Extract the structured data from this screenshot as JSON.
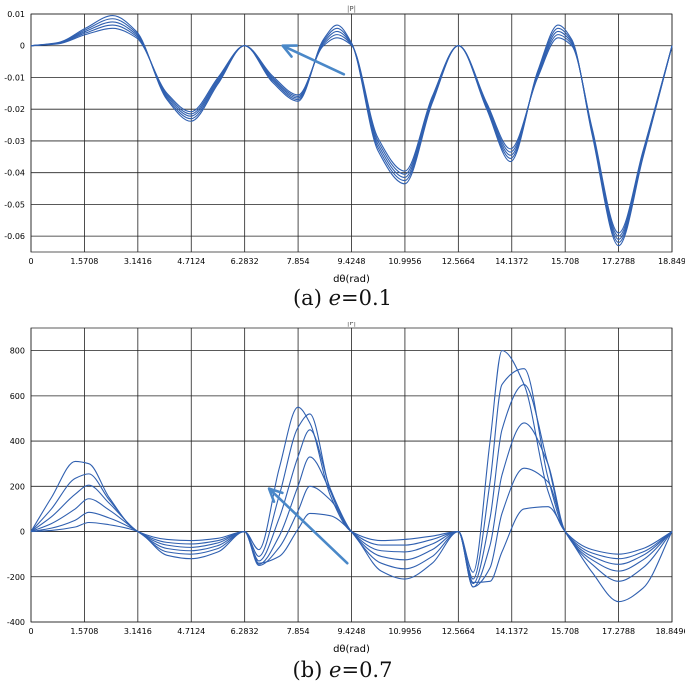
{
  "chart_data": [
    {
      "type": "line",
      "title": "|P|",
      "xlabel": "dθ(rad)",
      "ylabel": "",
      "xlim": [
        0,
        18.849
      ],
      "ylim": [
        -0.065,
        0.01
      ],
      "x_ticks": [
        0,
        1.5708,
        3.1416,
        4.7124,
        6.2832,
        7.854,
        9.4248,
        10.9956,
        12.5664,
        14.1372,
        15.708,
        17.2788,
        18.849
      ],
      "x_tick_labels": [
        "0",
        "1.5708",
        "3.1416",
        "4.7124",
        "6.2832",
        "7.854",
        "9.4248",
        "10.9956",
        "12.5664",
        "14.1372",
        "15.708",
        "17.2788",
        "18.849"
      ],
      "y_ticks": [
        0.01,
        0,
        -0.01,
        -0.02,
        -0.03,
        -0.04,
        -0.05,
        -0.06
      ],
      "y_tick_labels": [
        "0.01",
        "0",
        "-0.01",
        "-0.02",
        "-0.03",
        "-0.04",
        "-0.05",
        "-0.06"
      ],
      "grid": true,
      "legend": "none",
      "series_color": "#3060b0",
      "annotation": {
        "type": "arrow",
        "from": [
          9.2,
          -0.009
        ],
        "to": [
          7.4,
          0.0
        ]
      },
      "caption_prefix": "(a) ",
      "caption_var": "e",
      "caption_value": "=0.1",
      "series": [
        {
          "x": [
            0,
            0.8,
            1.6,
            2.4,
            3.1,
            4.0,
            4.7,
            5.5,
            6.28,
            7.1,
            7.85,
            8.6,
            9.0,
            9.42,
            10.2,
            10.99,
            11.8,
            12.57,
            13.4,
            14.1,
            14.9,
            15.5,
            15.9,
            16.5,
            17.28,
            18.0,
            18.85
          ],
          "y": [
            0,
            0.001,
            0.0055,
            0.0095,
            0.0045,
            -0.017,
            -0.0238,
            -0.012,
            0,
            -0.0115,
            -0.0175,
            0.002,
            0.0065,
            0.001,
            -0.033,
            -0.0435,
            -0.018,
            0,
            -0.02,
            -0.0365,
            -0.008,
            0.0065,
            0.002,
            -0.028,
            -0.063,
            -0.035,
            0
          ]
        },
        {
          "x": [
            0,
            0.8,
            1.6,
            2.4,
            3.1,
            4.0,
            4.7,
            5.5,
            6.28,
            7.1,
            7.85,
            8.6,
            9.0,
            9.42,
            10.2,
            10.99,
            11.8,
            12.57,
            13.4,
            14.1,
            14.9,
            15.5,
            15.9,
            16.5,
            17.28,
            18.0,
            18.85
          ],
          "y": [
            0,
            0.0009,
            0.005,
            0.0085,
            0.004,
            -0.0165,
            -0.023,
            -0.0115,
            0,
            -0.011,
            -0.017,
            0.0015,
            0.0055,
            0.0008,
            -0.032,
            -0.0425,
            -0.0175,
            0,
            -0.0195,
            -0.0355,
            -0.0085,
            0.0055,
            0.0015,
            -0.0275,
            -0.062,
            -0.0345,
            0
          ]
        },
        {
          "x": [
            0,
            0.8,
            1.6,
            2.4,
            3.1,
            4.0,
            4.7,
            5.5,
            6.28,
            7.1,
            7.85,
            8.6,
            9.0,
            9.42,
            10.2,
            10.99,
            11.8,
            12.57,
            13.4,
            14.1,
            14.9,
            15.5,
            15.9,
            16.5,
            17.28,
            18.0,
            18.85
          ],
          "y": [
            0,
            0.0008,
            0.0045,
            0.0075,
            0.0035,
            -0.016,
            -0.0222,
            -0.011,
            0,
            -0.0105,
            -0.0165,
            0.001,
            0.0045,
            0.0006,
            -0.031,
            -0.0415,
            -0.017,
            0,
            -0.019,
            -0.0345,
            -0.009,
            0.0045,
            0.001,
            -0.027,
            -0.061,
            -0.034,
            0
          ]
        },
        {
          "x": [
            0,
            0.8,
            1.6,
            2.4,
            3.1,
            4.0,
            4.7,
            5.5,
            6.28,
            7.1,
            7.85,
            8.6,
            9.0,
            9.42,
            10.2,
            10.99,
            11.8,
            12.57,
            13.4,
            14.1,
            14.9,
            15.5,
            15.9,
            16.5,
            17.28,
            18.0,
            18.85
          ],
          "y": [
            0,
            0.0007,
            0.004,
            0.0065,
            0.003,
            -0.0155,
            -0.0215,
            -0.0105,
            0,
            -0.01,
            -0.016,
            0.0005,
            0.0035,
            0.0004,
            -0.03,
            -0.0405,
            -0.0165,
            0,
            -0.0185,
            -0.0335,
            -0.0095,
            0.0035,
            0.0005,
            -0.0265,
            -0.06,
            -0.0335,
            0
          ]
        },
        {
          "x": [
            0,
            0.8,
            1.6,
            2.4,
            3.1,
            4.0,
            4.7,
            5.5,
            6.28,
            7.1,
            7.85,
            8.6,
            9.0,
            9.42,
            10.2,
            10.99,
            11.8,
            12.57,
            13.4,
            14.1,
            14.9,
            15.5,
            15.9,
            16.5,
            17.28,
            18.0,
            18.85
          ],
          "y": [
            0,
            0.0006,
            0.0035,
            0.0055,
            0.0025,
            -0.015,
            -0.0208,
            -0.01,
            0,
            -0.0095,
            -0.0155,
            0,
            0.0025,
            0.0002,
            -0.029,
            -0.0395,
            -0.016,
            0,
            -0.018,
            -0.0325,
            -0.01,
            0.0025,
            0,
            -0.026,
            -0.059,
            -0.033,
            0
          ]
        }
      ]
    },
    {
      "type": "line",
      "title": "|P|",
      "xlabel": "dθ(rad)",
      "ylabel": "",
      "xlim": [
        0,
        18.8496
      ],
      "ylim": [
        -400,
        900
      ],
      "x_ticks": [
        0,
        1.5708,
        3.1416,
        4.7124,
        6.2832,
        7.854,
        9.4248,
        10.9956,
        12.5664,
        14.1372,
        15.708,
        17.2788,
        18.8496
      ],
      "x_tick_labels": [
        "0",
        "1.5708",
        "3.1416",
        "4.7124",
        "6.2832",
        "7.854",
        "9.4248",
        "10.9956",
        "12.5664",
        "14.1372",
        "15.708",
        "17.2788",
        "18.8496"
      ],
      "y_ticks": [
        800,
        600,
        400,
        200,
        0,
        -200,
        -400
      ],
      "y_tick_labels": [
        "800",
        "600",
        "400",
        "200",
        "0",
        "-200",
        "-400"
      ],
      "grid": true,
      "legend": "none",
      "series_color": "#3060b0",
      "annotation": {
        "type": "arrow",
        "from": [
          9.3,
          -140
        ],
        "to": [
          7.0,
          190
        ]
      },
      "caption_prefix": "(b) ",
      "caption_var": "e",
      "caption_value": "=0.7",
      "series": [
        {
          "x": [
            0,
            0.6,
            1.3,
            1.7,
            2.3,
            3.14,
            4.0,
            4.7,
            5.5,
            6.28,
            6.7,
            7.3,
            7.85,
            8.2,
            8.8,
            9.42,
            10.3,
            10.99,
            11.8,
            12.57,
            13.0,
            13.5,
            13.85,
            14.5,
            15.2,
            15.708,
            16.5,
            17.28,
            18.0,
            18.85
          ],
          "y": [
            0,
            150,
            310,
            300,
            150,
            0,
            -35,
            -40,
            -30,
            0,
            -80,
            280,
            550,
            480,
            160,
            0,
            -40,
            -35,
            -20,
            0,
            -180,
            400,
            800,
            650,
            180,
            0,
            -80,
            -100,
            -75,
            0
          ]
        },
        {
          "x": [
            0,
            0.6,
            1.3,
            1.7,
            2.3,
            3.14,
            4.0,
            4.7,
            5.5,
            6.28,
            6.7,
            7.3,
            7.85,
            8.2,
            8.8,
            9.42,
            10.3,
            10.99,
            11.8,
            12.57,
            13.0,
            13.5,
            13.85,
            14.5,
            15.2,
            15.708,
            16.5,
            17.28,
            18.0,
            18.85
          ],
          "y": [
            0,
            100,
            235,
            255,
            140,
            0,
            -48,
            -55,
            -40,
            0,
            -110,
            160,
            460,
            520,
            180,
            0,
            -60,
            -60,
            -35,
            0,
            -210,
            220,
            650,
            720,
            240,
            0,
            -95,
            -120,
            -90,
            0
          ]
        },
        {
          "x": [
            0,
            0.6,
            1.3,
            1.7,
            2.3,
            3.14,
            4.0,
            4.7,
            5.5,
            6.28,
            6.7,
            7.3,
            7.85,
            8.2,
            8.8,
            9.42,
            10.3,
            10.99,
            11.8,
            12.57,
            13.0,
            13.5,
            13.85,
            14.5,
            15.2,
            15.708,
            16.5,
            17.28,
            18.0,
            18.85
          ],
          "y": [
            0,
            65,
            165,
            205,
            125,
            0,
            -60,
            -70,
            -50,
            0,
            -130,
            60,
            330,
            450,
            190,
            0,
            -85,
            -90,
            -55,
            0,
            -230,
            60,
            450,
            650,
            300,
            0,
            -110,
            -145,
            -105,
            0
          ]
        },
        {
          "x": [
            0,
            0.6,
            1.3,
            1.7,
            2.3,
            3.14,
            4.0,
            4.7,
            5.5,
            6.28,
            6.7,
            7.3,
            7.85,
            8.2,
            8.8,
            9.42,
            10.3,
            10.99,
            11.8,
            12.57,
            13.0,
            13.5,
            13.85,
            14.5,
            15.2,
            15.708,
            16.5,
            17.28,
            18.0,
            18.85
          ],
          "y": [
            0,
            35,
            100,
            145,
            95,
            0,
            -75,
            -85,
            -62,
            0,
            -145,
            -20,
            200,
            330,
            180,
            0,
            -110,
            -125,
            -80,
            0,
            -245,
            -60,
            250,
            480,
            300,
            0,
            -125,
            -175,
            -125,
            0
          ]
        },
        {
          "x": [
            0,
            0.6,
            1.3,
            1.7,
            2.3,
            3.14,
            4.0,
            4.7,
            5.5,
            6.28,
            6.7,
            7.3,
            7.85,
            8.2,
            8.8,
            9.42,
            10.3,
            10.99,
            11.8,
            12.57,
            13.0,
            13.5,
            13.85,
            14.5,
            15.2,
            15.708,
            16.5,
            17.28,
            18.0,
            18.85
          ],
          "y": [
            0,
            15,
            50,
            85,
            60,
            0,
            -90,
            -100,
            -75,
            0,
            -150,
            -70,
            90,
            200,
            140,
            0,
            -140,
            -165,
            -110,
            0,
            -245,
            -160,
            80,
            280,
            220,
            0,
            -145,
            -220,
            -160,
            0
          ]
        },
        {
          "x": [
            0,
            0.6,
            1.3,
            1.7,
            2.3,
            3.14,
            4.0,
            4.7,
            5.5,
            6.28,
            6.7,
            7.3,
            7.85,
            8.2,
            8.8,
            9.42,
            10.3,
            10.99,
            11.8,
            12.57,
            13.0,
            13.5,
            13.85,
            14.5,
            15.2,
            15.708,
            16.5,
            17.28,
            18.0,
            18.85
          ],
          "y": [
            0,
            5,
            20,
            40,
            30,
            0,
            -105,
            -120,
            -90,
            0,
            -140,
            -110,
            10,
            80,
            70,
            0,
            -175,
            -210,
            -140,
            0,
            -225,
            -220,
            -90,
            100,
            110,
            0,
            -180,
            -310,
            -250,
            0
          ]
        }
      ]
    }
  ]
}
